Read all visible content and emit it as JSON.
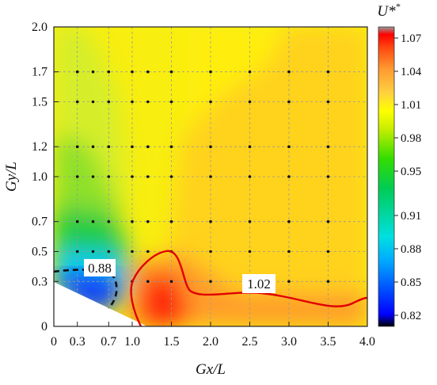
{
  "chart_data": {
    "type": "heatmap",
    "title": "",
    "xlabel": "Gx/L",
    "ylabel": "Gy/L",
    "xlim": [
      0,
      4.0
    ],
    "ylim": [
      0,
      2.0
    ],
    "x_ticks": [
      0,
      0.3,
      0.7,
      1.0,
      1.5,
      2.0,
      2.5,
      3.0,
      3.5,
      4.0
    ],
    "x_tick_labels": [
      "0",
      "0.3",
      "0.7",
      "1.0",
      "1.5",
      "2.0",
      "2.5",
      "3.0",
      "3.5",
      "4.0"
    ],
    "y_ticks": [
      0,
      0.3,
      0.5,
      0.7,
      1.0,
      1.2,
      1.5,
      1.7,
      2.0
    ],
    "y_tick_labels": [
      "0",
      "0.3",
      "0.5",
      "0.7",
      "1.0",
      "1.2",
      "1.5",
      "1.7",
      "2.0"
    ],
    "grid": true,
    "colorbar": {
      "label": "U*",
      "ticks": [
        0.82,
        0.85,
        0.88,
        0.91,
        0.95,
        0.98,
        1.01,
        1.04,
        1.07
      ],
      "tick_labels": [
        "0.82",
        "0.85",
        "0.88",
        "0.91",
        "0.95",
        "0.98",
        "1.01",
        "1.04",
        "1.07"
      ],
      "range": [
        0.81,
        1.08
      ],
      "colors": [
        "#000000",
        "#0000ff",
        "#00aaff",
        "#00e0e0",
        "#00cc55",
        "#33dd00",
        "#c8ee00",
        "#ffff00",
        "#ffd040",
        "#ff9a30",
        "#ff4a10",
        "#ff0000",
        "#999999"
      ]
    },
    "contours": [
      {
        "level": 0.88,
        "label": "0.88",
        "style": "dashed",
        "color": "#111111"
      },
      {
        "level": 1.02,
        "label": "1.02",
        "style": "solid",
        "color": "#dd0000"
      }
    ],
    "blank_region": "below line from (0, 0.3) to (1.2, 0)",
    "measurement_points": {
      "x": [
        0.3,
        0.5,
        0.7,
        1.0,
        1.2,
        1.5,
        2.0,
        2.5,
        3.0,
        3.5
      ],
      "y": [
        0.3,
        0.5,
        0.7,
        1.0,
        1.2,
        1.5,
        1.7
      ]
    },
    "field_samples": [
      {
        "x": 0.0,
        "y": 2.0,
        "value": 0.995
      },
      {
        "x": 1.0,
        "y": 2.0,
        "value": 0.998
      },
      {
        "x": 2.0,
        "y": 2.0,
        "value": 1.005
      },
      {
        "x": 3.0,
        "y": 2.0,
        "value": 1.015
      },
      {
        "x": 4.0,
        "y": 2.0,
        "value": 1.02
      },
      {
        "x": 0.0,
        "y": 1.5,
        "value": 0.99
      },
      {
        "x": 1.0,
        "y": 1.5,
        "value": 0.995
      },
      {
        "x": 2.0,
        "y": 1.5,
        "value": 1.015
      },
      {
        "x": 3.0,
        "y": 1.5,
        "value": 1.02
      },
      {
        "x": 4.0,
        "y": 1.5,
        "value": 1.02
      },
      {
        "x": 0.0,
        "y": 1.0,
        "value": 0.975
      },
      {
        "x": 0.5,
        "y": 1.0,
        "value": 0.98
      },
      {
        "x": 1.0,
        "y": 1.0,
        "value": 0.995
      },
      {
        "x": 2.0,
        "y": 1.0,
        "value": 1.02
      },
      {
        "x": 3.0,
        "y": 1.0,
        "value": 1.02
      },
      {
        "x": 4.0,
        "y": 1.0,
        "value": 1.02
      },
      {
        "x": 0.0,
        "y": 0.5,
        "value": 0.95
      },
      {
        "x": 0.5,
        "y": 0.5,
        "value": 0.94
      },
      {
        "x": 1.0,
        "y": 0.5,
        "value": 0.985
      },
      {
        "x": 1.5,
        "y": 0.5,
        "value": 1.025
      },
      {
        "x": 2.0,
        "y": 0.5,
        "value": 1.02
      },
      {
        "x": 3.0,
        "y": 0.5,
        "value": 1.02
      },
      {
        "x": 4.0,
        "y": 0.5,
        "value": 1.02
      },
      {
        "x": 0.5,
        "y": 0.3,
        "value": 0.86
      },
      {
        "x": 1.3,
        "y": 0.2,
        "value": 1.04
      },
      {
        "x": 1.4,
        "y": 0.05,
        "value": 1.07
      },
      {
        "x": 2.5,
        "y": 0.1,
        "value": 1.03
      },
      {
        "x": 3.5,
        "y": 0.1,
        "value": 1.03
      }
    ]
  }
}
